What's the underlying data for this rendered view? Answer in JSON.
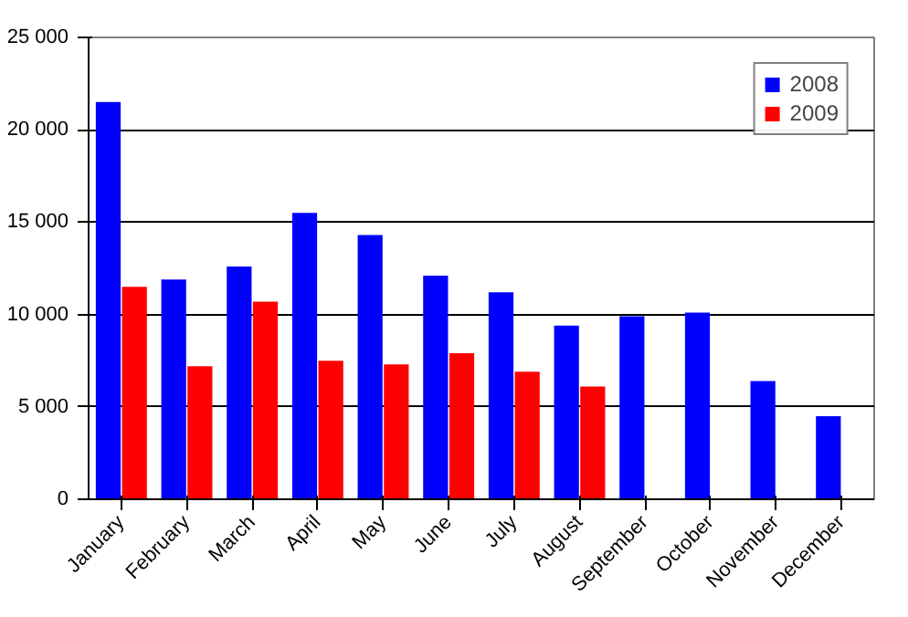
{
  "chart_data": {
    "type": "bar",
    "categories": [
      "January",
      "February",
      "March",
      "April",
      "May",
      "June",
      "July",
      "August",
      "September",
      "October",
      "November",
      "December"
    ],
    "series": [
      {
        "name": "2008",
        "color": "#0000ff",
        "values": [
          21500,
          11900,
          12600,
          15500,
          14300,
          12100,
          11200,
          9400,
          9900,
          10100,
          6400,
          4500
        ]
      },
      {
        "name": "2009",
        "color": "#ff0000",
        "values": [
          11500,
          7200,
          10700,
          7500,
          7300,
          7900,
          6900,
          6100,
          null,
          null,
          null,
          null
        ]
      }
    ],
    "ylim": [
      0,
      25000
    ],
    "yticks": [
      {
        "value": 0,
        "label": "0"
      },
      {
        "value": 5000,
        "label": "5 000"
      },
      {
        "value": 10000,
        "label": "10 000"
      },
      {
        "value": 15000,
        "label": "15 000"
      },
      {
        "value": 20000,
        "label": "20 000"
      },
      {
        "value": 25000,
        "label": "25 000"
      }
    ],
    "grid": "y",
    "legend": "top right"
  }
}
